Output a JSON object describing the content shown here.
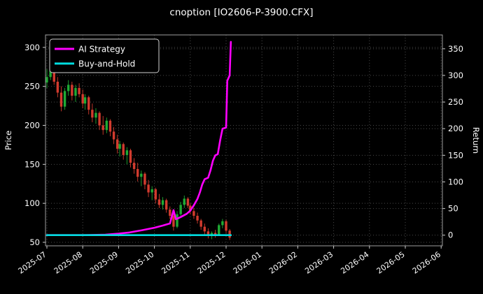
{
  "title": "cnoption [IO2606-P-3900.CFX]",
  "colors": {
    "background": "#000000",
    "text": "#ffffff",
    "grid": "#4a4a4a",
    "axis_border": "#9e9e9e",
    "tick": "#cccccc",
    "candle_up": "#1faa34",
    "candle_down": "#d23b2e",
    "ai_strategy": "#ff00ff",
    "buy_and_hold": "#00dde0",
    "legend_border": "#cfcfcf"
  },
  "axes": {
    "left_label": "Price",
    "right_label": "Return",
    "left_ticks": [
      50,
      100,
      150,
      200,
      250,
      300
    ],
    "right_ticks": [
      0,
      50,
      100,
      150,
      200,
      250,
      300,
      350
    ],
    "x_tick_labels": [
      "2025-07",
      "2025-08",
      "2025-09",
      "2025-10",
      "2025-11",
      "2025-12",
      "2026-01",
      "2026-02",
      "2026-03",
      "2026-04",
      "2026-05",
      "2026-06"
    ],
    "left_range": [
      45.5,
      316
    ],
    "right_range": [
      -20,
      376
    ]
  },
  "legend": [
    {
      "label": "AI Strategy",
      "color_key": "ai_strategy"
    },
    {
      "label": "Buy-and-Hold",
      "color_key": "buy_and_hold"
    }
  ],
  "chart_data": {
    "type": "candlestick",
    "title": "cnoption [IO2606-P-3900.CFX]",
    "ylabel_left": "Price",
    "ylabel_right": "Return",
    "x_range": [
      "2025-07",
      "2026-06"
    ],
    "left_ylim": [
      45.5,
      316
    ],
    "right_ylim": [
      -20,
      376
    ],
    "grid": true,
    "legend_position": "upper-left",
    "candles": [
      [
        "2025-07-01",
        255,
        272,
        248,
        262
      ],
      [
        "2025-07-04",
        262,
        305,
        258,
        270
      ],
      [
        "2025-07-07",
        270,
        288,
        252,
        256
      ],
      [
        "2025-07-10",
        256,
        262,
        236,
        242
      ],
      [
        "2025-07-13",
        242,
        250,
        218,
        224
      ],
      [
        "2025-07-16",
        224,
        248,
        220,
        244
      ],
      [
        "2025-07-19",
        244,
        258,
        238,
        252
      ],
      [
        "2025-07-22",
        252,
        256,
        232,
        238
      ],
      [
        "2025-07-25",
        238,
        252,
        230,
        248
      ],
      [
        "2025-07-28",
        248,
        254,
        236,
        240
      ],
      [
        "2025-07-31",
        240,
        246,
        222,
        228
      ],
      [
        "2025-08-03",
        228,
        240,
        220,
        236
      ],
      [
        "2025-08-06",
        236,
        238,
        214,
        220
      ],
      [
        "2025-08-09",
        220,
        228,
        204,
        210
      ],
      [
        "2025-08-12",
        210,
        222,
        202,
        216
      ],
      [
        "2025-08-15",
        216,
        218,
        194,
        200
      ],
      [
        "2025-08-18",
        200,
        212,
        188,
        194
      ],
      [
        "2025-08-21",
        194,
        210,
        190,
        206
      ],
      [
        "2025-08-24",
        206,
        208,
        186,
        192
      ],
      [
        "2025-08-27",
        192,
        198,
        176,
        182
      ],
      [
        "2025-08-30",
        182,
        188,
        164,
        170
      ],
      [
        "2025-09-02",
        170,
        180,
        160,
        176
      ],
      [
        "2025-09-05",
        176,
        178,
        156,
        162
      ],
      [
        "2025-09-08",
        162,
        172,
        150,
        168
      ],
      [
        "2025-09-11",
        168,
        170,
        146,
        152
      ],
      [
        "2025-09-14",
        152,
        158,
        138,
        144
      ],
      [
        "2025-09-17",
        144,
        152,
        128,
        134
      ],
      [
        "2025-09-20",
        134,
        142,
        122,
        138
      ],
      [
        "2025-09-23",
        138,
        140,
        118,
        124
      ],
      [
        "2025-09-26",
        124,
        130,
        108,
        114
      ],
      [
        "2025-09-29",
        114,
        122,
        104,
        118
      ],
      [
        "2025-10-02",
        118,
        120,
        100,
        105
      ],
      [
        "2025-10-05",
        105,
        112,
        94,
        98
      ],
      [
        "2025-10-08",
        98,
        108,
        92,
        104
      ],
      [
        "2025-10-11",
        104,
        106,
        88,
        92
      ],
      [
        "2025-10-14",
        92,
        96,
        80,
        84
      ],
      [
        "2025-10-17",
        84,
        86,
        65,
        70
      ],
      [
        "2025-10-20",
        70,
        90,
        68,
        86
      ],
      [
        "2025-10-23",
        86,
        102,
        84,
        98
      ],
      [
        "2025-10-26",
        98,
        110,
        94,
        106
      ],
      [
        "2025-10-29",
        106,
        108,
        94,
        97
      ],
      [
        "2025-11-01",
        97,
        100,
        86,
        90
      ],
      [
        "2025-11-04",
        90,
        94,
        80,
        84
      ],
      [
        "2025-11-07",
        84,
        88,
        74,
        78
      ],
      [
        "2025-11-10",
        78,
        80,
        66,
        70
      ],
      [
        "2025-11-13",
        70,
        74,
        60,
        64
      ],
      [
        "2025-11-16",
        64,
        68,
        55,
        58
      ],
      [
        "2025-11-19",
        58,
        64,
        54,
        62
      ],
      [
        "2025-11-22",
        62,
        66,
        56,
        60
      ],
      [
        "2025-11-25",
        60,
        74,
        58,
        72
      ],
      [
        "2025-11-28",
        72,
        80,
        68,
        77
      ],
      [
        "2025-12-01",
        77,
        79,
        62,
        65
      ],
      [
        "2025-12-04",
        65,
        67,
        53,
        56
      ]
    ],
    "series": [
      {
        "name": "AI Strategy",
        "axis": "right",
        "color_key": "ai_strategy",
        "points": [
          [
            "2025-07-01",
            0
          ],
          [
            "2025-08-01",
            0
          ],
          [
            "2025-08-20",
            1
          ],
          [
            "2025-09-01",
            3
          ],
          [
            "2025-09-10",
            5
          ],
          [
            "2025-09-20",
            9
          ],
          [
            "2025-10-01",
            14
          ],
          [
            "2025-10-08",
            18
          ],
          [
            "2025-10-14",
            22
          ],
          [
            "2025-10-17",
            47
          ],
          [
            "2025-10-19",
            30
          ],
          [
            "2025-10-23",
            34
          ],
          [
            "2025-10-28",
            40
          ],
          [
            "2025-11-01",
            46
          ],
          [
            "2025-11-04",
            56
          ],
          [
            "2025-11-07",
            68
          ],
          [
            "2025-11-09",
            80
          ],
          [
            "2025-11-11",
            95
          ],
          [
            "2025-11-13",
            105
          ],
          [
            "2025-11-16",
            108
          ],
          [
            "2025-11-18",
            122
          ],
          [
            "2025-11-20",
            140
          ],
          [
            "2025-11-22",
            150
          ],
          [
            "2025-11-24",
            152
          ],
          [
            "2025-11-26",
            178
          ],
          [
            "2025-11-28",
            200
          ],
          [
            "2025-12-01",
            202
          ],
          [
            "2025-12-02",
            290
          ],
          [
            "2025-12-03",
            295
          ],
          [
            "2025-12-04",
            300
          ],
          [
            "2025-12-05",
            363
          ]
        ]
      },
      {
        "name": "Buy-and-Hold",
        "axis": "right",
        "color_key": "buy_and_hold",
        "points": [
          [
            "2025-07-01",
            0
          ],
          [
            "2025-12-05",
            0
          ]
        ]
      }
    ]
  }
}
